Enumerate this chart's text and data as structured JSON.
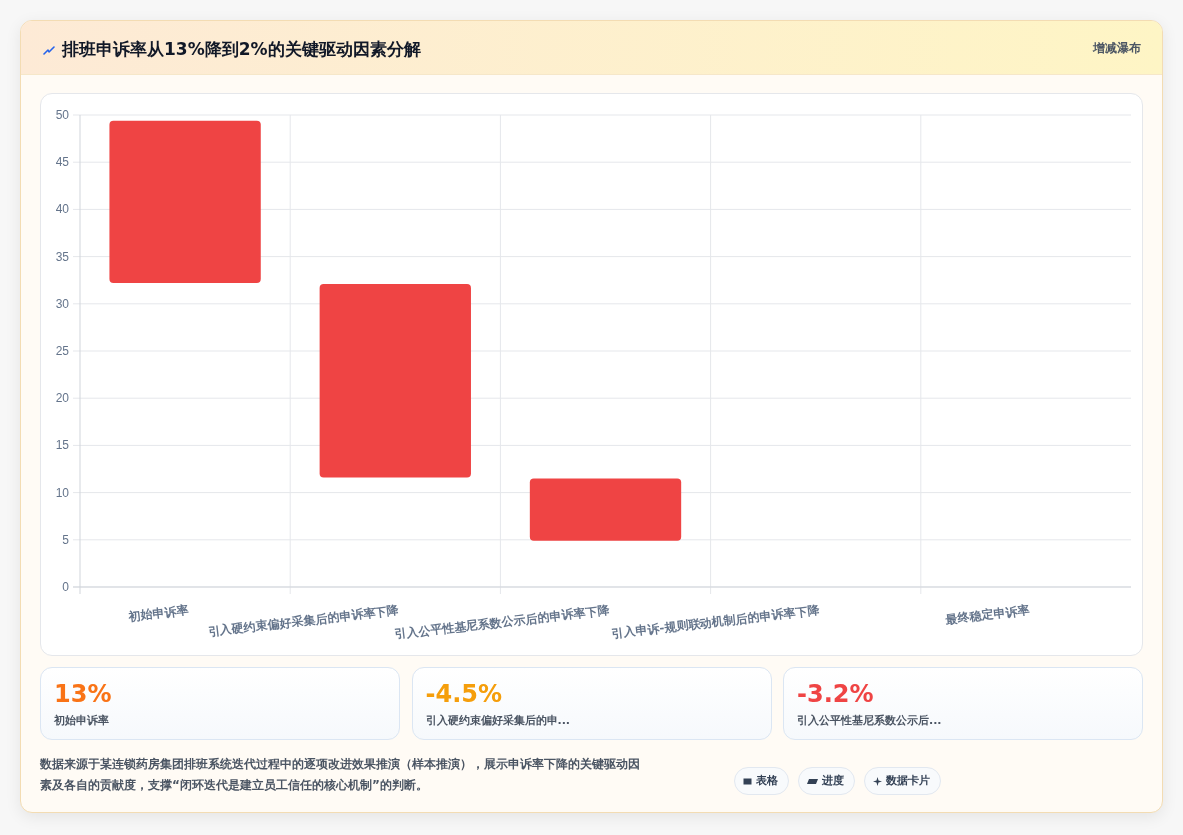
{
  "chart_data": [
    {
      "type": "bar",
      "title": "排班申诉率从13%降到2%的关键驱动因素分解",
      "subtitle": "增减瀑布",
      "categories": [
        "初始申诉率",
        "引入硬约束偏好采集后的申诉率下降",
        "引入公平性基尼系数公示后的申诉率下降",
        "引入申诉-规则联动机制后的申诉率下降",
        "最终稳定申诉率"
      ],
      "values": [
        17.2,
        20.5,
        6.6,
        null,
        null
      ],
      "base": [
        32.2,
        11.6,
        4.9,
        null,
        null
      ],
      "color": "#ef4444",
      "ylim": [
        0,
        50
      ],
      "yticks": [
        0,
        5,
        10,
        15,
        20,
        25,
        30,
        35,
        40,
        45,
        50
      ],
      "grid": true,
      "annotations": [
        "数据来源于某连锁药房集团排班系统迭代过程中的逐项改进效果推演（样本推演），展示申诉率下降的关键驱动因素及各自的贡献度，支撑“闭环迭代是建立员工信任的核心机制”的判断。",
        "表格",
        "进度",
        "数据卡片"
      ]
    },
    {
      "type": "other",
      "title": "13%",
      "subtitle": "初始申诉率",
      "color": "#f97316"
    },
    {
      "type": "other",
      "title": "-4.5%",
      "subtitle": "引入硬约束偏好采集后的申...",
      "color": "#f59e0b"
    },
    {
      "type": "other",
      "title": "-3.2%",
      "subtitle": "引入公平性基尼系数公示后...",
      "color": "#ef4444"
    }
  ]
}
